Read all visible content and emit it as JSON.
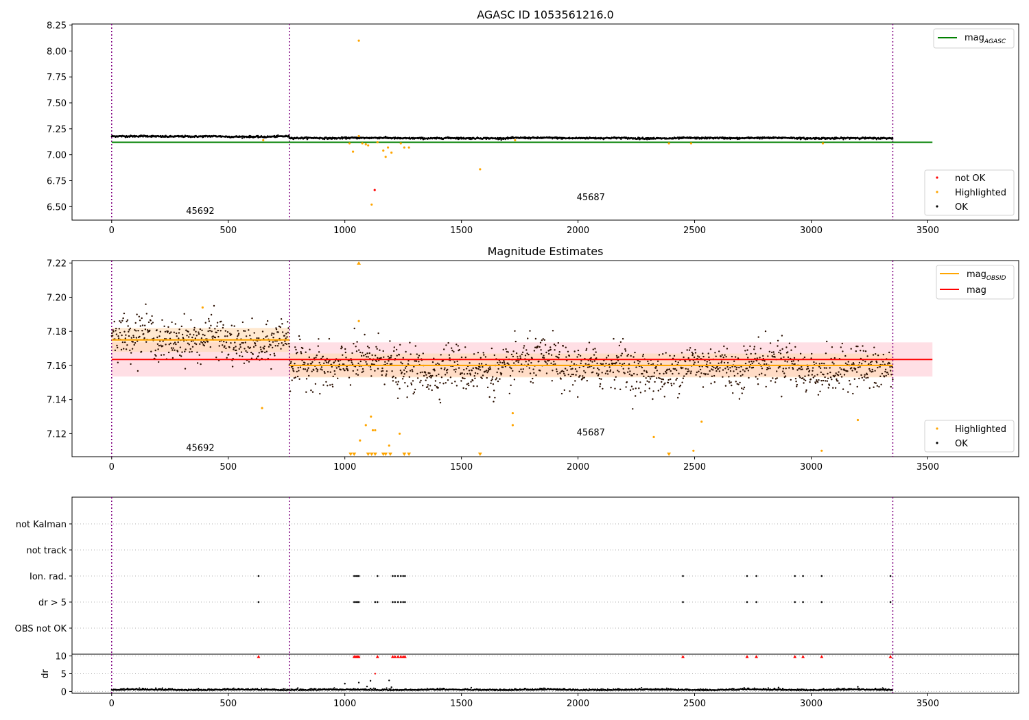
{
  "chart_data": [
    {
      "type": "scatter",
      "title": "AGASC ID 1053561216.0",
      "xlim": [
        -170,
        3890
      ],
      "ylim": [
        6.37,
        8.26
      ],
      "xticks": [
        0,
        500,
        1000,
        1500,
        2000,
        2500,
        3000,
        3500
      ],
      "yticks": [
        6.5,
        6.75,
        7.0,
        7.25,
        7.5,
        7.75,
        8.0,
        8.25
      ],
      "ytick_labels": [
        "6.50",
        "6.75",
        "7.00",
        "7.25",
        "7.50",
        "7.75",
        "8.00",
        "8.25"
      ],
      "obsid_boundaries": [
        0,
        762,
        3350
      ],
      "obsid_labels": [
        {
          "text": "45692",
          "x": 380,
          "y": 6.43
        },
        {
          "text": "45687",
          "x": 2055,
          "y": 6.56
        }
      ],
      "lines": [
        {
          "name": "mag_AGASC",
          "label_main": "mag",
          "label_sub": "AGASC",
          "color": "#008000",
          "y": 7.12,
          "x_range": [
            0,
            3520
          ]
        }
      ],
      "ok_trend": [
        {
          "x_range": [
            0,
            762
          ],
          "mean": 7.176,
          "scatter": 0.004
        },
        {
          "x_range": [
            762,
            3350
          ],
          "mean": 7.16,
          "scatter": 0.004
        }
      ],
      "highlighted_points": [
        {
          "x": 1060,
          "y": 8.1
        },
        {
          "x": 1020,
          "y": 7.11
        },
        {
          "x": 1035,
          "y": 7.03
        },
        {
          "x": 1060,
          "y": 7.18
        },
        {
          "x": 1075,
          "y": 7.11
        },
        {
          "x": 1090,
          "y": 7.1
        },
        {
          "x": 1100,
          "y": 7.09
        },
        {
          "x": 1115,
          "y": 6.52
        },
        {
          "x": 1140,
          "y": 7.12
        },
        {
          "x": 1165,
          "y": 7.04
        },
        {
          "x": 1175,
          "y": 6.98
        },
        {
          "x": 1185,
          "y": 7.07
        },
        {
          "x": 1200,
          "y": 7.02
        },
        {
          "x": 1240,
          "y": 7.11
        },
        {
          "x": 1255,
          "y": 7.07
        },
        {
          "x": 1275,
          "y": 7.07
        },
        {
          "x": 1580,
          "y": 6.86
        },
        {
          "x": 1730,
          "y": 7.14
        },
        {
          "x": 2390,
          "y": 7.11
        },
        {
          "x": 2485,
          "y": 7.11
        },
        {
          "x": 3050,
          "y": 7.11
        },
        {
          "x": 650,
          "y": 7.14
        }
      ],
      "not_ok_points": [
        {
          "x": 1128,
          "y": 6.66
        }
      ],
      "legend_lines": {
        "placement": "upper right"
      },
      "legend_points": {
        "placement": "lower right",
        "entries": [
          {
            "label": "not OK",
            "color": "#ff0000"
          },
          {
            "label": "Highlighted",
            "color": "#ffa500"
          },
          {
            "label": "OK",
            "color": "#000000"
          }
        ]
      }
    },
    {
      "type": "scatter",
      "title": "Magnitude Estimates",
      "xlim": [
        -170,
        3890
      ],
      "ylim": [
        7.1065,
        7.2215
      ],
      "xticks": [
        0,
        500,
        1000,
        1500,
        2000,
        2500,
        3000,
        3500
      ],
      "yticks": [
        7.12,
        7.14,
        7.16,
        7.18,
        7.2,
        7.22
      ],
      "ytick_labels": [
        "7.12",
        "7.14",
        "7.16",
        "7.18",
        "7.20",
        "7.22"
      ],
      "obsid_boundaries": [
        0,
        762,
        3350
      ],
      "obsid_labels": [
        {
          "text": "45692",
          "x": 380,
          "y": 7.11
        },
        {
          "text": "45687",
          "x": 2055,
          "y": 7.119
        }
      ],
      "mag": {
        "label": "mag",
        "color": "#ff0000",
        "y": 7.1635,
        "band": [
          7.1535,
          7.1735
        ],
        "x_range": [
          0,
          3520
        ]
      },
      "mag_obsid": [
        {
          "x_range": [
            0,
            762
          ],
          "y": 7.175,
          "band": [
            7.168,
            7.182
          ]
        },
        {
          "x_range": [
            762,
            3350
          ],
          "y": 7.16,
          "band": [
            7.153,
            7.167
          ]
        }
      ],
      "mag_obsid_label_main": "mag",
      "mag_obsid_label_sub": "OBSID",
      "ok_trend": [
        {
          "x_range": [
            0,
            762
          ],
          "mean": 7.175,
          "scatter": 0.006
        },
        {
          "x_range": [
            762,
            3350
          ],
          "mean": 7.159,
          "scatter": 0.0065
        }
      ],
      "highlighted_points": [
        {
          "x": 390,
          "y": 7.194
        },
        {
          "x": 645,
          "y": 7.135
        },
        {
          "x": 1060,
          "y": 7.186
        },
        {
          "x": 1065,
          "y": 7.116
        },
        {
          "x": 1090,
          "y": 7.125
        },
        {
          "x": 1112,
          "y": 7.13
        },
        {
          "x": 1120,
          "y": 7.122
        },
        {
          "x": 1130,
          "y": 7.122
        },
        {
          "x": 1190,
          "y": 7.113
        },
        {
          "x": 1235,
          "y": 7.12
        },
        {
          "x": 1720,
          "y": 7.132
        },
        {
          "x": 1720,
          "y": 7.125
        },
        {
          "x": 2325,
          "y": 7.118
        },
        {
          "x": 2495,
          "y": 7.11
        },
        {
          "x": 2530,
          "y": 7.127
        },
        {
          "x": 3045,
          "y": 7.11
        },
        {
          "x": 3200,
          "y": 7.128
        }
      ],
      "clipped_low_x": [
        1025,
        1040,
        1100,
        1115,
        1130,
        1165,
        1175,
        1195,
        1255,
        1275,
        1580,
        2390
      ],
      "clipped_high_x": [
        1060
      ],
      "legend_lines": {
        "placement": "upper right"
      },
      "legend_points": {
        "placement": "lower right",
        "entries": [
          {
            "label": "Highlighted",
            "color": "#ffa500"
          },
          {
            "label": "OK",
            "color": "#000000"
          }
        ]
      }
    },
    {
      "type": "scatter",
      "title": "",
      "xlim": [
        -170,
        3890
      ],
      "categories": [
        "not Kalman",
        "not track",
        "Ion. rad.",
        "dr > 5",
        "OBS not OK"
      ],
      "obsid_boundaries": [
        0,
        762,
        3350
      ],
      "flags": {
        "Ion. rad.": [
          630,
          1040,
          1048,
          1055,
          1060,
          1140,
          1205,
          1215,
          1228,
          1240,
          1250,
          1258,
          2450,
          2725,
          2765,
          2930,
          2965,
          3045,
          3340
        ],
        "dr > 5": [
          630,
          1040,
          1048,
          1055,
          1060,
          1130,
          1140,
          1205,
          1215,
          1228,
          1240,
          1250,
          1258,
          2450,
          2725,
          2765,
          2930,
          2965,
          3045,
          3340
        ]
      }
    },
    {
      "type": "scatter",
      "title": "",
      "ylabel": "dr",
      "xlim": [
        -170,
        3890
      ],
      "ylim": [
        -0.5,
        10.5
      ],
      "xticks": [
        0,
        500,
        1000,
        1500,
        2000,
        2500,
        3000,
        3500
      ],
      "yticks": [
        0,
        5,
        10
      ],
      "ytick_labels": [
        "0",
        "5",
        "10"
      ],
      "obsid_boundaries": [
        0,
        762,
        3350
      ],
      "dr_trend": {
        "x_range": [
          0,
          3350
        ],
        "mean": 0.35,
        "scatter": 0.2
      },
      "dr_outliers": [
        {
          "x": 1000,
          "y": 2.2
        },
        {
          "x": 1060,
          "y": 2.5
        },
        {
          "x": 1110,
          "y": 3.0
        },
        {
          "x": 1130,
          "y": 5.0
        },
        {
          "x": 1190,
          "y": 3.1
        },
        {
          "x": 1200,
          "y": 1.2
        },
        {
          "x": 1095,
          "y": 1.4
        },
        {
          "x": 3200,
          "y": 1.3
        },
        {
          "x": 2860,
          "y": 1.1
        }
      ],
      "clipped_high_x": [
        630,
        1040,
        1048,
        1055,
        1060,
        1140,
        1205,
        1215,
        1228,
        1240,
        1250,
        1258,
        2450,
        2725,
        2765,
        2930,
        2965,
        3045,
        3340
      ]
    }
  ],
  "colors": {
    "ok": "#000000",
    "highlighted": "#ffa500",
    "not_ok": "#ff0000",
    "boundary": "#800080",
    "agasc_line": "#008000",
    "mag_line": "#ff0000",
    "mag_band": "#ffc0cb",
    "obsid_line": "#ffa500",
    "obsid_band": "#ffdab0",
    "ok_brown": "#2a0f00"
  }
}
